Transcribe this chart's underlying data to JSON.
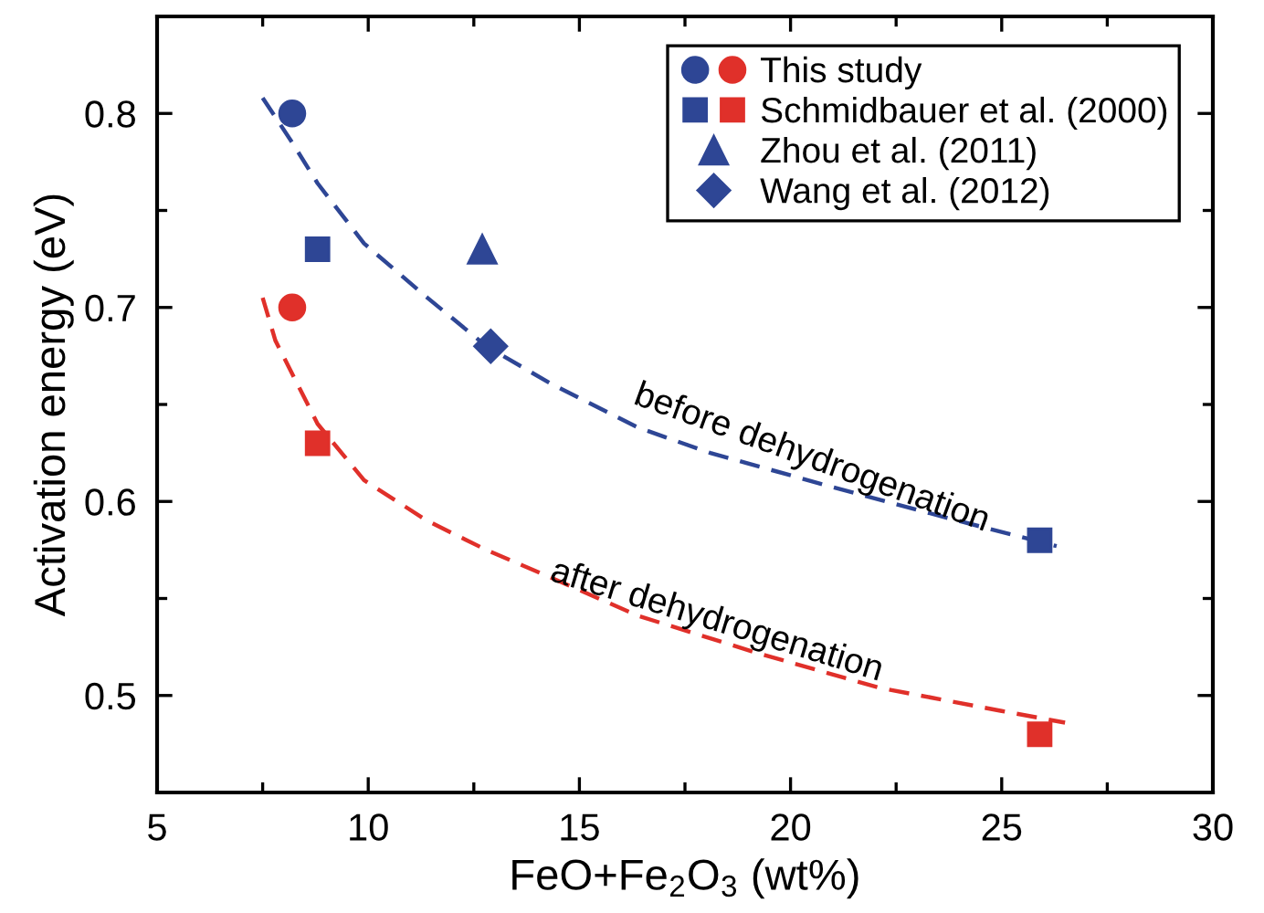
{
  "chart_data": {
    "type": "scatter",
    "xlabel": "FeO+Fe$_{2}$O$_{3}$ (wt%)",
    "ylabel": "Activation energy (eV)",
    "xlim": [
      5,
      30
    ],
    "xticks": [
      5,
      10,
      15,
      20,
      25,
      30
    ],
    "ylim": [
      0.45,
      0.85
    ],
    "yticks": [
      0.5,
      0.6,
      0.7,
      0.8
    ],
    "grid": false,
    "legend": "top right",
    "series": [
      {
        "name": "This study",
        "marker": "circle",
        "colors": [
          "#2e4695",
          "#e0302a"
        ],
        "x": [
          8.2,
          8.2
        ],
        "values": [
          0.8,
          0.7
        ]
      },
      {
        "name": "Schmidbauer et al. (2000)",
        "marker": "square",
        "colors": [
          "#2e4695",
          "#2e4695",
          "#e0302a",
          "#e0302a"
        ],
        "x": [
          8.8,
          25.9,
          8.8,
          25.9
        ],
        "values": [
          0.73,
          0.58,
          0.63,
          0.48
        ]
      },
      {
        "name": "Zhou et al. (2011)",
        "marker": "triangle",
        "color": "#2e4695",
        "x": [
          12.7
        ],
        "values": [
          0.73
        ]
      },
      {
        "name": "Wang et al. (2012)",
        "marker": "diamond",
        "color": "#2e4695",
        "x": [
          12.9
        ],
        "values": [
          0.68
        ]
      },
      {
        "type": "line",
        "line_style": "dashed",
        "marker": "none",
        "color": "#2e4695",
        "x": [
          7.5,
          8.2,
          8.8,
          9.9,
          11.4,
          12.8,
          14.3,
          16.4,
          18.1,
          20.9,
          23.8,
          26.3
        ],
        "values": [
          0.808,
          0.785,
          0.764,
          0.733,
          0.705,
          0.68,
          0.661,
          0.638,
          0.625,
          0.608,
          0.591,
          0.577
        ]
      },
      {
        "type": "line",
        "line_style": "dashed",
        "marker": "none",
        "color": "#e0302a",
        "x": [
          7.5,
          7.8,
          8.8,
          9.9,
          11.4,
          12.8,
          14.3,
          16.4,
          19.2,
          22.1,
          25.0,
          26.5
        ],
        "values": [
          0.705,
          0.683,
          0.64,
          0.611,
          0.59,
          0.575,
          0.561,
          0.541,
          0.522,
          0.504,
          0.492,
          0.486
        ]
      }
    ],
    "annotations": [
      "before dehydrogenation",
      "after dehydrogenation"
    ]
  }
}
